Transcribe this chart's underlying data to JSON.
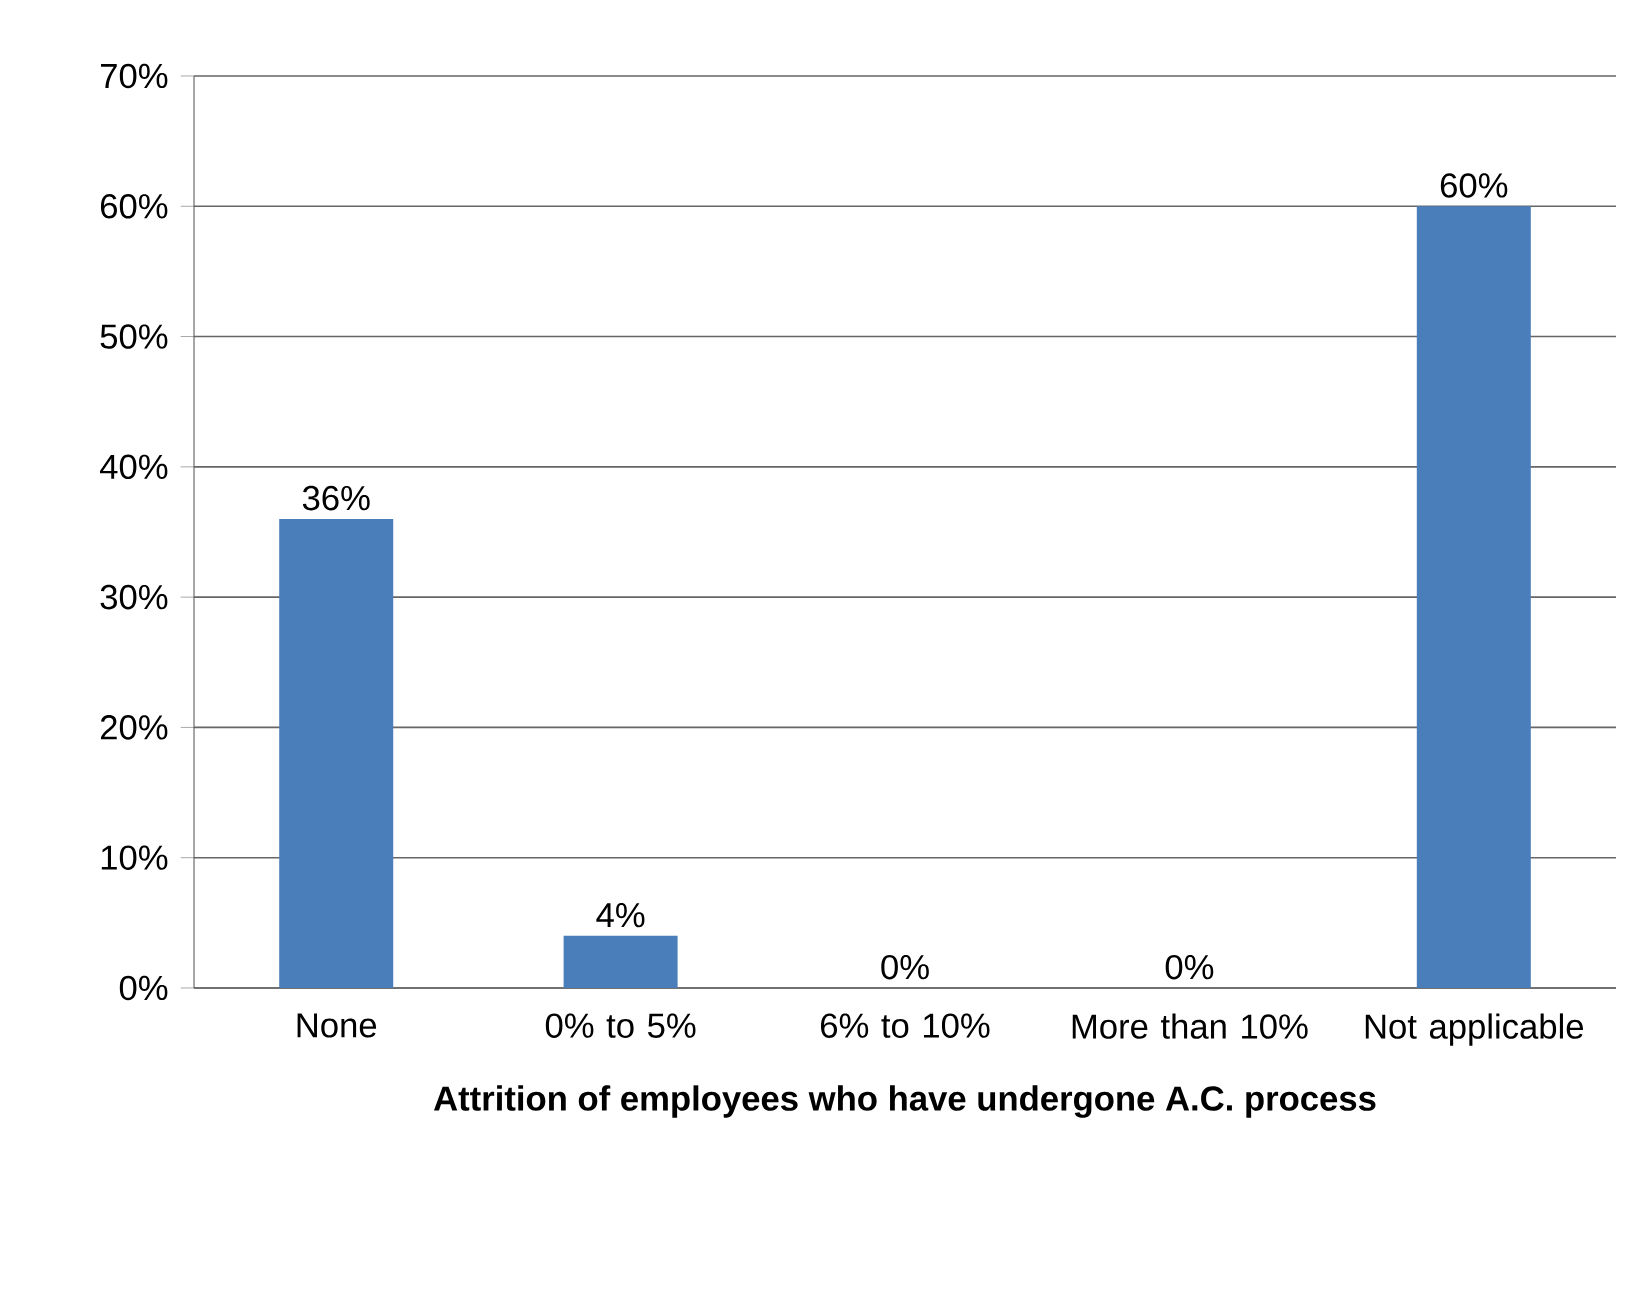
{
  "chart_data": {
    "type": "bar",
    "xlabel": "Attrition of employees who have undergone A.C. process",
    "categories": [
      "None",
      "0% to 5%",
      "6% to 10%",
      "More than 10%",
      "Not applicable"
    ],
    "values": [
      36,
      4,
      0,
      0,
      60
    ],
    "value_labels": [
      "36%",
      "4%",
      "0%",
      "0%",
      "60%"
    ],
    "color": "#4a7ebb",
    "ylim": [
      0,
      70
    ],
    "yticks": [
      {
        "value": 0,
        "label": "0%"
      },
      {
        "value": 10,
        "label": "10%"
      },
      {
        "value": 20,
        "label": "20%"
      },
      {
        "value": 30,
        "label": "30%"
      },
      {
        "value": 40,
        "label": "40%"
      },
      {
        "value": 50,
        "label": "50%"
      },
      {
        "value": 60,
        "label": "60%"
      },
      {
        "value": 70,
        "label": "70%"
      }
    ],
    "grid": "y"
  }
}
